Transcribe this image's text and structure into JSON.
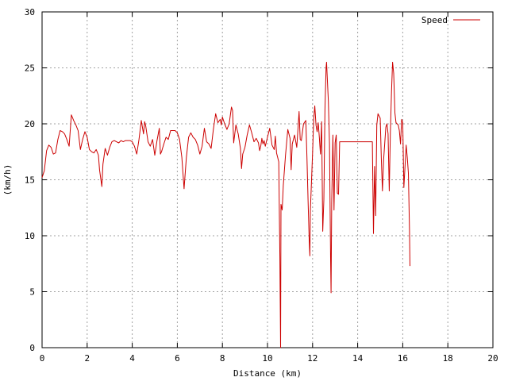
{
  "chart_data": {
    "type": "line",
    "title": "",
    "xlabel": "Distance (km)",
    "ylabel": "(km/h)",
    "xlim": [
      0,
      20
    ],
    "ylim": [
      0,
      30
    ],
    "xticks": [
      0,
      2,
      4,
      6,
      8,
      10,
      12,
      14,
      16,
      18,
      20
    ],
    "yticks": [
      0,
      5,
      10,
      15,
      20,
      25,
      30
    ],
    "grid": true,
    "legend": "top-right",
    "series": [
      {
        "name": "Speed",
        "color": "#cc0000",
        "points": [
          [
            0.0,
            15.2
          ],
          [
            0.1,
            15.8
          ],
          [
            0.2,
            17.6
          ],
          [
            0.3,
            18.1
          ],
          [
            0.4,
            17.9
          ],
          [
            0.5,
            17.3
          ],
          [
            0.6,
            17.4
          ],
          [
            0.7,
            18.6
          ],
          [
            0.8,
            19.4
          ],
          [
            0.9,
            19.3
          ],
          [
            1.0,
            19.1
          ],
          [
            1.1,
            18.6
          ],
          [
            1.2,
            18.0
          ],
          [
            1.3,
            20.8
          ],
          [
            1.4,
            20.3
          ],
          [
            1.5,
            19.9
          ],
          [
            1.6,
            19.4
          ],
          [
            1.7,
            17.7
          ],
          [
            1.8,
            18.6
          ],
          [
            1.9,
            19.3
          ],
          [
            2.0,
            18.8
          ],
          [
            2.1,
            17.7
          ],
          [
            2.2,
            17.5
          ],
          [
            2.3,
            17.4
          ],
          [
            2.4,
            17.7
          ],
          [
            2.5,
            17.2
          ],
          [
            2.55,
            15.9
          ],
          [
            2.65,
            14.4
          ],
          [
            2.7,
            16.4
          ],
          [
            2.8,
            17.8
          ],
          [
            2.9,
            17.2
          ],
          [
            3.0,
            17.9
          ],
          [
            3.1,
            18.4
          ],
          [
            3.2,
            18.5
          ],
          [
            3.3,
            18.4
          ],
          [
            3.4,
            18.3
          ],
          [
            3.5,
            18.5
          ],
          [
            3.6,
            18.4
          ],
          [
            3.7,
            18.5
          ],
          [
            3.8,
            18.5
          ],
          [
            3.9,
            18.5
          ],
          [
            4.0,
            18.4
          ],
          [
            4.1,
            18.0
          ],
          [
            4.2,
            17.3
          ],
          [
            4.3,
            18.6
          ],
          [
            4.4,
            20.3
          ],
          [
            4.5,
            19.1
          ],
          [
            4.55,
            20.2
          ],
          [
            4.6,
            19.8
          ],
          [
            4.7,
            18.4
          ],
          [
            4.8,
            18.0
          ],
          [
            4.9,
            18.6
          ],
          [
            5.0,
            17.2
          ],
          [
            5.1,
            18.5
          ],
          [
            5.2,
            19.6
          ],
          [
            5.25,
            17.3
          ],
          [
            5.3,
            17.5
          ],
          [
            5.4,
            18.2
          ],
          [
            5.5,
            18.8
          ],
          [
            5.6,
            18.6
          ],
          [
            5.7,
            19.4
          ],
          [
            5.8,
            19.4
          ],
          [
            5.9,
            19.4
          ],
          [
            6.0,
            19.2
          ],
          [
            6.1,
            18.6
          ],
          [
            6.2,
            17.0
          ],
          [
            6.3,
            14.2
          ],
          [
            6.4,
            17.0
          ],
          [
            6.5,
            18.8
          ],
          [
            6.6,
            19.2
          ],
          [
            6.7,
            18.8
          ],
          [
            6.8,
            18.6
          ],
          [
            6.9,
            18.1
          ],
          [
            7.0,
            17.3
          ],
          [
            7.1,
            18.0
          ],
          [
            7.2,
            19.6
          ],
          [
            7.3,
            18.4
          ],
          [
            7.4,
            18.2
          ],
          [
            7.5,
            17.8
          ],
          [
            7.6,
            19.5
          ],
          [
            7.7,
            20.9
          ],
          [
            7.8,
            20.1
          ],
          [
            7.9,
            20.4
          ],
          [
            7.95,
            19.9
          ],
          [
            8.0,
            20.6
          ],
          [
            8.1,
            20.0
          ],
          [
            8.2,
            19.5
          ],
          [
            8.3,
            20.0
          ],
          [
            8.4,
            21.5
          ],
          [
            8.45,
            21.2
          ],
          [
            8.5,
            18.3
          ],
          [
            8.6,
            19.9
          ],
          [
            8.7,
            19.1
          ],
          [
            8.8,
            17.8
          ],
          [
            8.85,
            16.0
          ],
          [
            8.9,
            17.3
          ],
          [
            9.0,
            17.9
          ],
          [
            9.1,
            19.0
          ],
          [
            9.2,
            19.9
          ],
          [
            9.3,
            19.2
          ],
          [
            9.4,
            18.4
          ],
          [
            9.5,
            18.7
          ],
          [
            9.6,
            18.3
          ],
          [
            9.65,
            17.6
          ],
          [
            9.7,
            18.0
          ],
          [
            9.75,
            18.7
          ],
          [
            9.8,
            18.2
          ],
          [
            9.85,
            18.5
          ],
          [
            9.9,
            18.0
          ],
          [
            10.0,
            18.8
          ],
          [
            10.1,
            19.6
          ],
          [
            10.2,
            18.1
          ],
          [
            10.3,
            17.7
          ],
          [
            10.35,
            18.9
          ],
          [
            10.4,
            17.4
          ],
          [
            10.45,
            17.0
          ],
          [
            10.5,
            16.6
          ],
          [
            10.55,
            8.1
          ],
          [
            10.58,
            0.0
          ],
          [
            10.6,
            12.8
          ],
          [
            10.65,
            12.3
          ],
          [
            10.7,
            14.5
          ],
          [
            10.8,
            17.2
          ],
          [
            10.9,
            19.5
          ],
          [
            11.0,
            18.7
          ],
          [
            11.05,
            15.9
          ],
          [
            11.1,
            18.2
          ],
          [
            11.2,
            19.0
          ],
          [
            11.3,
            17.9
          ],
          [
            11.4,
            21.1
          ],
          [
            11.45,
            18.6
          ],
          [
            11.5,
            18.5
          ],
          [
            11.6,
            20.0
          ],
          [
            11.7,
            20.3
          ],
          [
            11.75,
            17.0
          ],
          [
            11.8,
            13.2
          ],
          [
            11.85,
            9.7
          ],
          [
            11.88,
            8.2
          ],
          [
            11.9,
            12.2
          ],
          [
            12.0,
            17.4
          ],
          [
            12.05,
            20.4
          ],
          [
            12.1,
            21.6
          ],
          [
            12.15,
            19.9
          ],
          [
            12.2,
            19.3
          ],
          [
            12.25,
            20.1
          ],
          [
            12.3,
            18.8
          ],
          [
            12.35,
            17.3
          ],
          [
            12.4,
            20.2
          ],
          [
            12.45,
            10.4
          ],
          [
            12.5,
            13.2
          ],
          [
            12.55,
            21.3
          ],
          [
            12.6,
            25.0
          ],
          [
            12.62,
            25.5
          ],
          [
            12.7,
            22.0
          ],
          [
            12.75,
            18.2
          ],
          [
            12.8,
            8.0
          ],
          [
            12.82,
            4.9
          ],
          [
            12.85,
            13.0
          ],
          [
            12.9,
            19.0
          ],
          [
            12.95,
            12.3
          ],
          [
            13.0,
            18.3
          ],
          [
            13.05,
            19.0
          ],
          [
            13.1,
            13.8
          ],
          [
            13.15,
            13.7
          ],
          [
            13.2,
            18.4
          ],
          [
            13.25,
            18.4
          ],
          [
            13.5,
            18.4
          ],
          [
            14.0,
            18.4
          ],
          [
            14.5,
            18.4
          ],
          [
            14.65,
            18.4
          ],
          [
            14.7,
            10.2
          ],
          [
            14.75,
            16.2
          ],
          [
            14.8,
            11.8
          ],
          [
            14.85,
            19.9
          ],
          [
            14.9,
            20.9
          ],
          [
            15.0,
            20.5
          ],
          [
            15.05,
            16.9
          ],
          [
            15.1,
            14.0
          ],
          [
            15.15,
            16.8
          ],
          [
            15.25,
            19.7
          ],
          [
            15.3,
            20.0
          ],
          [
            15.35,
            19.1
          ],
          [
            15.4,
            14.0
          ],
          [
            15.45,
            19.2
          ],
          [
            15.5,
            22.8
          ],
          [
            15.55,
            25.5
          ],
          [
            15.6,
            24.5
          ],
          [
            15.65,
            21.0
          ],
          [
            15.7,
            20.1
          ],
          [
            15.8,
            19.9
          ],
          [
            15.85,
            19.4
          ],
          [
            15.9,
            18.2
          ],
          [
            15.95,
            20.4
          ],
          [
            16.0,
            20.1
          ],
          [
            16.05,
            14.3
          ],
          [
            16.1,
            16.1
          ],
          [
            16.15,
            18.1
          ],
          [
            16.2,
            17.0
          ],
          [
            16.25,
            15.6
          ],
          [
            16.3,
            10.5
          ],
          [
            16.32,
            7.3
          ]
        ]
      }
    ]
  }
}
